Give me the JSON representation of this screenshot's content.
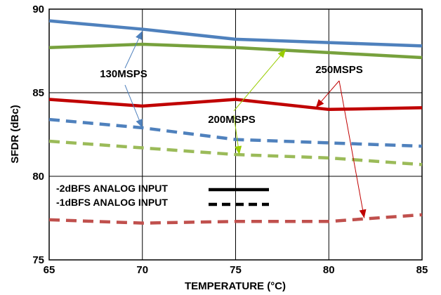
{
  "chart_data": {
    "type": "line",
    "title": "",
    "xlabel": "TEMPERATURE (°C)",
    "ylabel": "SFDR (dBc)",
    "xlim": [
      65,
      85
    ],
    "ylim": [
      75,
      90
    ],
    "x_ticks": [
      "65",
      "70",
      "75",
      "80",
      "85"
    ],
    "y_ticks": [
      "75",
      "80",
      "85",
      "90"
    ],
    "grid": true,
    "x": [
      65,
      70,
      75,
      80,
      85
    ],
    "series": [
      {
        "color": "#4F81BD",
        "style": "solid",
        "values": [
          89.3,
          88.8,
          88.2,
          88.0,
          87.8
        ]
      },
      {
        "color": "#77A13D",
        "style": "solid",
        "values": [
          87.7,
          87.9,
          87.7,
          87.4,
          87.1
        ]
      },
      {
        "color": "#C00000",
        "style": "solid",
        "values": [
          84.6,
          84.2,
          84.6,
          84.0,
          84.1
        ]
      },
      {
        "color": "#4F81BD",
        "style": "dashed",
        "values": [
          83.4,
          82.9,
          82.2,
          82.0,
          81.8
        ]
      },
      {
        "color": "#9BBB59",
        "style": "dashed",
        "values": [
          82.1,
          81.7,
          81.3,
          81.1,
          80.7
        ]
      },
      {
        "color": "#C0504D",
        "style": "dashed",
        "values": [
          77.4,
          77.2,
          77.3,
          77.3,
          77.7
        ]
      }
    ],
    "annotations": [
      {
        "label": "130MSPS",
        "arrows_to": [
          [
            70,
            88.7
          ],
          [
            70,
            82.9
          ]
        ],
        "arrow_color": "#4F81BD"
      },
      {
        "label": "200MSPS",
        "arrows_to": [
          [
            77.7,
            87.6
          ],
          [
            75.2,
            81.3
          ]
        ],
        "arrow_color": "#99CC00"
      },
      {
        "label": "250MSPS",
        "arrows_to": [
          [
            79.3,
            84.1
          ],
          [
            81.9,
            77.5
          ]
        ],
        "arrow_color": "#C00000"
      }
    ],
    "legend": {
      "position": "bottom-left",
      "entries": [
        {
          "label": "-2dBFS ANALOG INPUT",
          "style": "solid"
        },
        {
          "label": "-1dBFS ANALOG INPUT",
          "style": "dashed"
        }
      ]
    }
  }
}
